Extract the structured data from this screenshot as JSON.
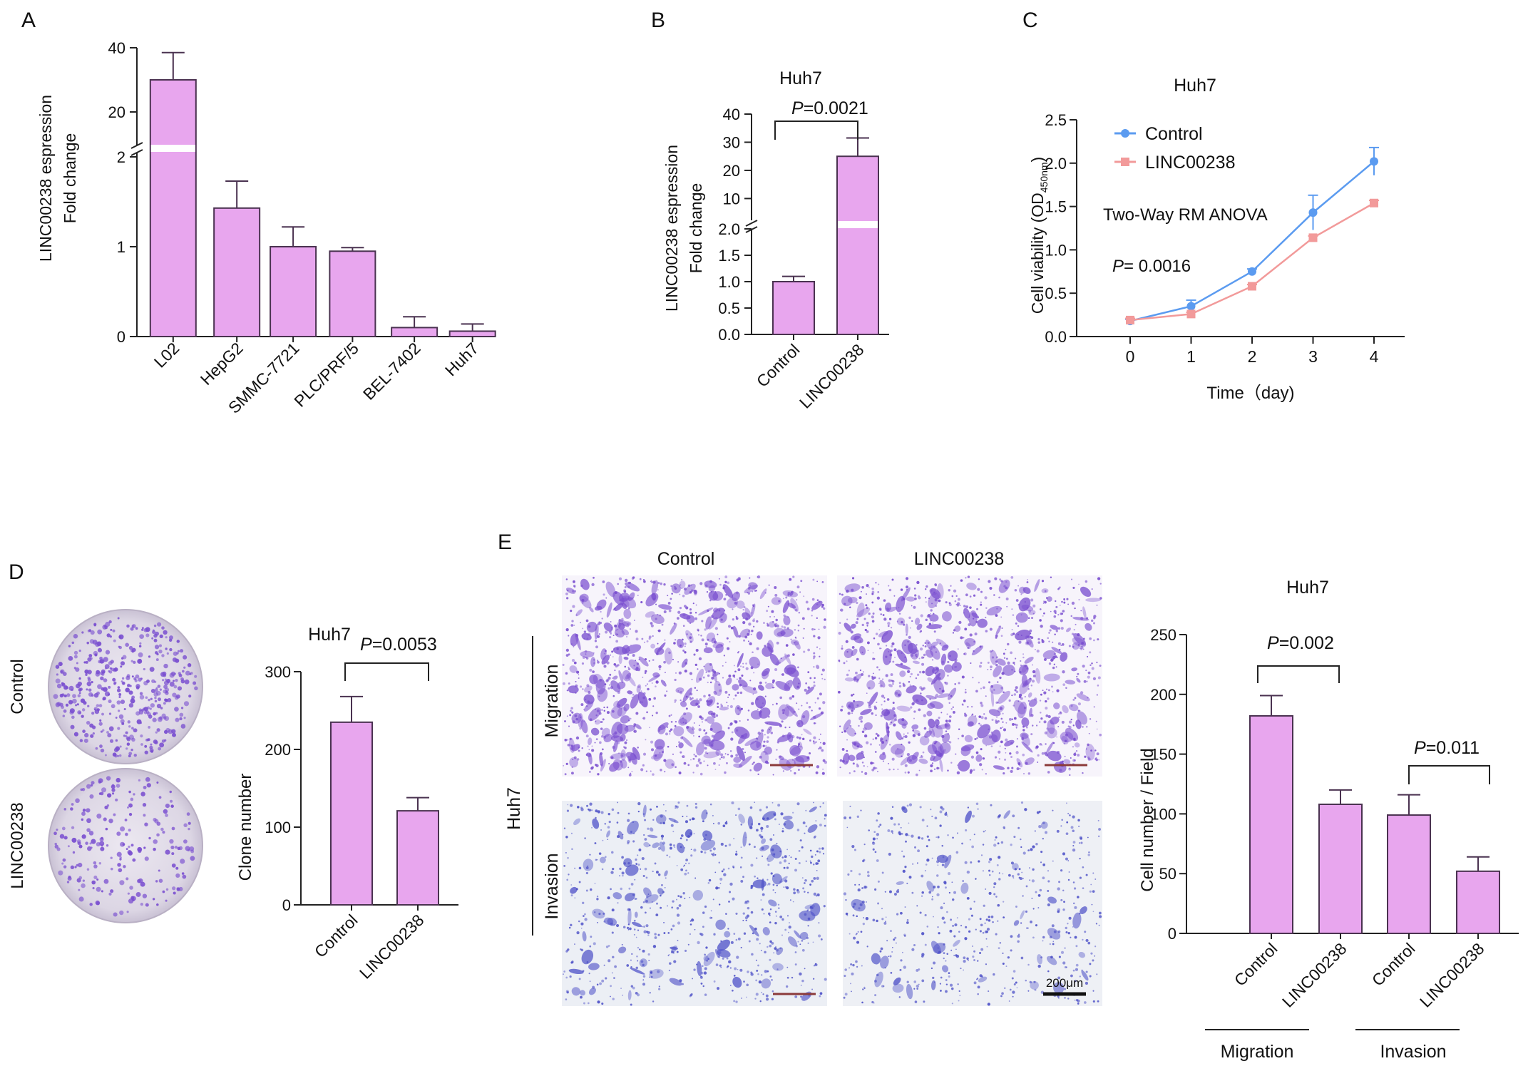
{
  "colors": {
    "bar_fill": "#e8a6ee",
    "bar_stroke": "#4a3250",
    "axis": "#222222",
    "control_line": "#5b9bf0",
    "linc_line": "#f29a9a",
    "stain": "#7a4fd0",
    "stain_invasion": "#4f52c8",
    "plate_bg": "#e6e2ec"
  },
  "panels": {
    "a": {
      "letter": "A",
      "ylabel_line1": "LINC00238 espression",
      "ylabel_line2": "Fold change",
      "bottom_ticks": [
        "0",
        "1",
        "2"
      ],
      "top_ticks": [
        "20",
        "40"
      ],
      "chart_data": {
        "type": "bar",
        "categories": [
          "L02",
          "HepG2",
          "SMMC-7721",
          "PLC/PRF/5",
          "BEL-7402",
          "Huh7"
        ],
        "values": [
          30,
          1.43,
          1.0,
          0.95,
          0.1,
          0.06
        ],
        "errors": [
          8.5,
          0.3,
          0.22,
          0.04,
          0.12,
          0.08
        ],
        "ylabel": "LINC00238 espression Fold change",
        "axis_break": {
          "lower": [
            0,
            2
          ],
          "upper": [
            10,
            40
          ]
        }
      }
    },
    "b": {
      "letter": "B",
      "title": "Huh7",
      "ylabel_line1": "LINC00238 espression",
      "ylabel_line2": "Fold change",
      "p_prefix": "P",
      "p_value": "=0.0021",
      "bottom_ticks": [
        "0.0",
        "0.5",
        "1.0",
        "1.5",
        "2.0"
      ],
      "top_ticks": [
        "10",
        "20",
        "30",
        "40"
      ],
      "chart_data": {
        "type": "bar",
        "title": "Huh7",
        "categories": [
          "Control",
          "LINC00238"
        ],
        "values": [
          1.0,
          25
        ],
        "errors": [
          0.1,
          6.5
        ],
        "ylabel": "LINC00238 espression Fold change",
        "axis_break": {
          "lower": [
            0,
            2.0
          ],
          "upper": [
            2.0,
            40
          ]
        }
      }
    },
    "c": {
      "letter": "C",
      "title": "Huh7",
      "ylabel_main": "Cell viability (OD",
      "ylabel_sub": "450nm",
      "ylabel_end": ")",
      "xlabel": "Time（day)",
      "legend": [
        "Control",
        "LINC00238"
      ],
      "stat_test": "Two-Way RM ANOVA",
      "p_prefix": "P",
      "p_value": "= 0.0016",
      "yticks": [
        "0.0",
        "0.5",
        "1.0",
        "1.5",
        "2.0",
        "2.5"
      ],
      "xticks": [
        "0",
        "1",
        "2",
        "3",
        "4"
      ],
      "chart_data": {
        "type": "line",
        "title": "Huh7",
        "x": [
          0,
          1,
          2,
          3,
          4
        ],
        "xlabel": "Time（day)",
        "ylabel": "Cell viability (OD450nm)",
        "ylim": [
          0,
          2.5
        ],
        "legend_position": "top-left",
        "series": [
          {
            "name": "Control",
            "values": [
              0.18,
              0.35,
              0.75,
              1.43,
              2.02
            ],
            "errors": [
              0.02,
              0.07,
              0.03,
              0.2,
              0.16
            ]
          },
          {
            "name": "LINC00238",
            "values": [
              0.19,
              0.26,
              0.58,
              1.14,
              1.54
            ],
            "errors": [
              0.02,
              0.02,
              0.02,
              0.02,
              0.03
            ]
          }
        ]
      }
    },
    "d": {
      "letter": "D",
      "plate_labels": [
        "Control",
        "LINC00238"
      ],
      "title": "Huh7",
      "p_prefix": "P",
      "p_value": "=0.0053",
      "ylabel": "Clone number",
      "yticks": [
        "0",
        "100",
        "200",
        "300"
      ],
      "chart_data": {
        "type": "bar",
        "title": "Huh7",
        "categories": [
          "Control",
          "LINC00238"
        ],
        "values": [
          235,
          121
        ],
        "errors": [
          33,
          17
        ],
        "ylabel": "Clone number",
        "ylim": [
          0,
          300
        ]
      }
    },
    "e": {
      "letter": "E",
      "col_labels": [
        "Control",
        "LINC00238"
      ],
      "row_labels": [
        "Migration",
        "Invasion"
      ],
      "side_label": "Huh7",
      "scale_bar": "200μm",
      "title": "Huh7",
      "ylabel": "Cell number / Field",
      "p_prefix": "P",
      "p1": "=0.002",
      "p2": "=0.011",
      "group_labels": [
        "Migration",
        "Invasion"
      ],
      "yticks": [
        "0",
        "50",
        "100",
        "150",
        "200",
        "250"
      ],
      "chart_data": {
        "type": "bar",
        "title": "Huh7",
        "categories": [
          "Control",
          "LINC00238",
          "Control",
          "LINC00238"
        ],
        "groups": [
          "Migration",
          "Migration",
          "Invasion",
          "Invasion"
        ],
        "values": [
          182,
          108,
          99,
          52
        ],
        "errors": [
          17,
          12,
          17,
          12
        ],
        "ylabel": "Cell number / Field",
        "ylim": [
          0,
          250
        ]
      }
    }
  }
}
